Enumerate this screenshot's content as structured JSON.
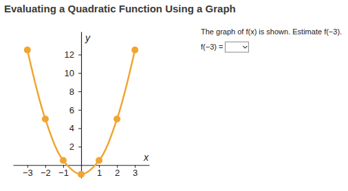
{
  "chart_data": {
    "type": "line",
    "title": "Evaluating a Quadratic Function Using a Graph",
    "annotations": [
      "The graph of f(x) is shown. Estimate f(−3).",
      "f(−3) ="
    ],
    "x_label": "x",
    "y_label": "y",
    "x": [
      -3,
      -2,
      -1,
      0,
      1,
      2,
      3
    ],
    "values": [
      12.5,
      5,
      0.5,
      -1,
      0.5,
      5,
      12.5
    ],
    "color": "#f0a531",
    "marker": "circle",
    "line_style": "solid",
    "xlim": [
      -3.8,
      3.8
    ],
    "ylim": [
      -1.4,
      14.5
    ],
    "xticks": [
      {
        "value": -3,
        "label": "−3"
      },
      {
        "value": -2,
        "label": "−2"
      },
      {
        "value": -1,
        "label": "−1"
      },
      1,
      2,
      3
    ],
    "yticks": [
      2,
      4,
      6,
      8,
      10,
      12
    ],
    "grid": false
  }
}
